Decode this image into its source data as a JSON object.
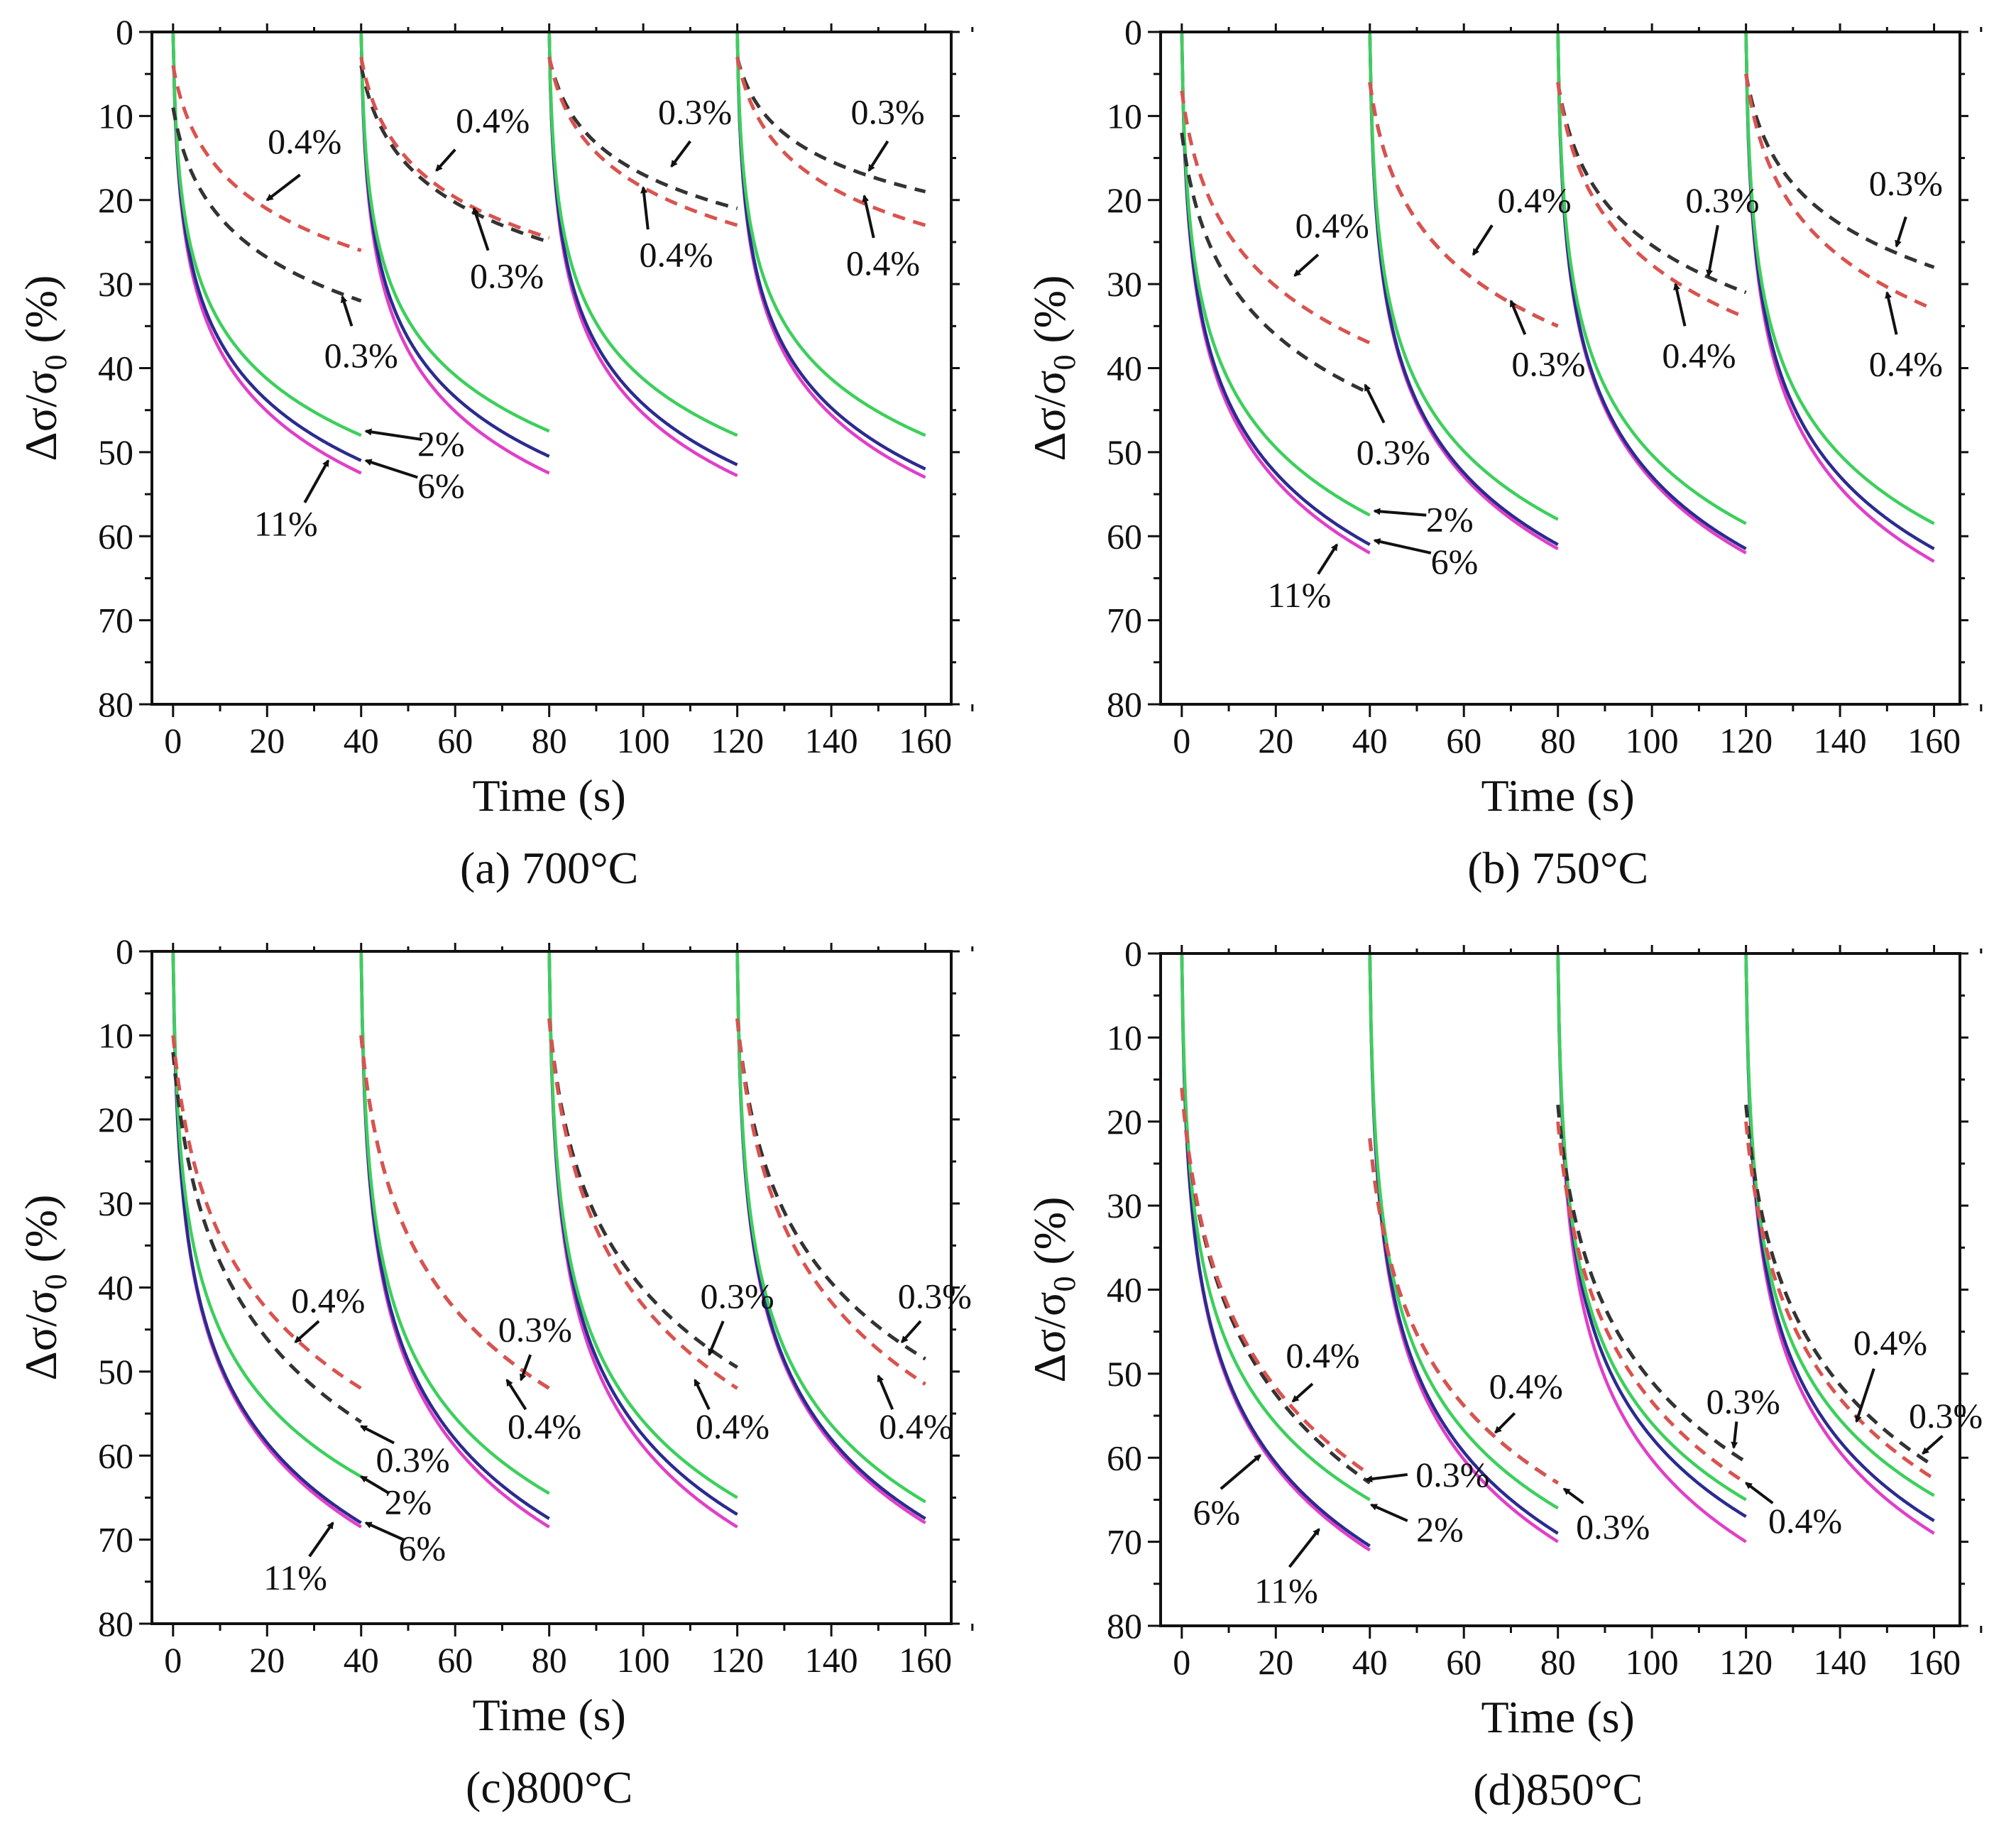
{
  "chart_data": [
    {
      "type": "line",
      "caption": "(a) 700°C",
      "xlabel": "Time (s)",
      "ylabel": {
        "main": "Δσ/σ",
        "sub": "0",
        "unit": " (%)"
      },
      "xlim": [
        -4.5,
        165.5
      ],
      "ylim": [
        0,
        80
      ],
      "y_inverted": true,
      "xticks": [
        0,
        20,
        40,
        60,
        80,
        100,
        120,
        140,
        160
      ],
      "yticks": [
        0,
        10,
        20,
        30,
        40,
        50,
        60,
        70,
        80
      ],
      "segment_starts": [
        0,
        40,
        80,
        120
      ],
      "segment_length": 40,
      "series": [
        {
          "name": "11%",
          "color": "#e040c8",
          "style": "solid",
          "start": [
            0,
            0,
            0,
            0
          ],
          "end": [
            52.5,
            52.5,
            52.8,
            53
          ]
        },
        {
          "name": "6%",
          "color": "#2b2b8f",
          "style": "solid",
          "start": [
            0,
            0,
            0,
            0
          ],
          "end": [
            51,
            50.5,
            51.5,
            52
          ]
        },
        {
          "name": "2%",
          "color": "#3dcf5c",
          "style": "solid",
          "start": [
            0,
            0,
            0,
            0
          ],
          "end": [
            48,
            47.5,
            48,
            48
          ]
        },
        {
          "name": "0.3%",
          "color": "#333333",
          "style": "dashed",
          "start": [
            9,
            4,
            3,
            3
          ],
          "end": [
            32,
            25,
            21,
            19
          ]
        },
        {
          "name": "0.4%",
          "color": "#d9534f",
          "style": "dashed",
          "start": [
            4,
            3,
            3,
            3
          ],
          "end": [
            26,
            24.5,
            23,
            23
          ]
        }
      ],
      "annotations": [
        {
          "text": "0.4%",
          "label": [
            28,
            13
          ],
          "tail": [
            27,
            17
          ],
          "tip": [
            20,
            20
          ]
        },
        {
          "text": "0.3%",
          "label": [
            40,
            38.5
          ],
          "tail": [
            38,
            35
          ],
          "tip": [
            36,
            31.5
          ]
        },
        {
          "text": "2%",
          "label": [
            57,
            49
          ],
          "tail": [
            53,
            48.5
          ],
          "tip": [
            41,
            47.5
          ]
        },
        {
          "text": "6%",
          "label": [
            57,
            54
          ],
          "tail": [
            52,
            53
          ],
          "tip": [
            41,
            51
          ]
        },
        {
          "text": "11%",
          "label": [
            24,
            58.5
          ],
          "tail": [
            28,
            56
          ],
          "tip": [
            33,
            51
          ]
        },
        {
          "text": "0.4%",
          "label": [
            68,
            10.5
          ],
          "tail": [
            60,
            14
          ],
          "tip": [
            56,
            16.5
          ]
        },
        {
          "text": "0.3%",
          "label": [
            71,
            29
          ],
          "tail": [
            67,
            26
          ],
          "tip": [
            64,
            21
          ]
        },
        {
          "text": "0.3%",
          "label": [
            111,
            9.5
          ],
          "tail": [
            110,
            13
          ],
          "tip": [
            106,
            16
          ]
        },
        {
          "text": "0.4%",
          "label": [
            107,
            26.5
          ],
          "tail": [
            101,
            23.5
          ],
          "tip": [
            100,
            18.5
          ]
        },
        {
          "text": "0.3%",
          "label": [
            152,
            9.5
          ],
          "tail": [
            152,
            13
          ],
          "tip": [
            148,
            16.5
          ]
        },
        {
          "text": "0.4%",
          "label": [
            151,
            27.5
          ],
          "tail": [
            149,
            24.5
          ],
          "tip": [
            147,
            19.5
          ]
        }
      ]
    },
    {
      "type": "line",
      "caption": "(b) 750°C",
      "xlabel": "Time (s)",
      "ylabel": {
        "main": "Δσ/σ",
        "sub": "0",
        "unit": " (%)"
      },
      "xlim": [
        -4.5,
        165.5
      ],
      "ylim": [
        0,
        80
      ],
      "y_inverted": true,
      "xticks": [
        0,
        20,
        40,
        60,
        80,
        100,
        120,
        140,
        160
      ],
      "yticks": [
        0,
        10,
        20,
        30,
        40,
        50,
        60,
        70,
        80
      ],
      "segment_starts": [
        0,
        40,
        80,
        120
      ],
      "segment_length": 40,
      "series": [
        {
          "name": "11%",
          "color": "#e040c8",
          "style": "solid",
          "start": [
            0,
            0,
            0,
            0
          ],
          "end": [
            62,
            61.5,
            62,
            63
          ]
        },
        {
          "name": "6%",
          "color": "#2b2b8f",
          "style": "solid",
          "start": [
            0,
            0,
            0,
            0
          ],
          "end": [
            61,
            61,
            61.5,
            61.5
          ]
        },
        {
          "name": "2%",
          "color": "#3dcf5c",
          "style": "solid",
          "start": [
            0,
            0,
            0,
            0
          ],
          "end": [
            57.5,
            58,
            58.5,
            58.5
          ]
        },
        {
          "name": "0.3%",
          "color": "#333333",
          "style": "dashed",
          "start": [
            12,
            6,
            6,
            5
          ],
          "end": [
            43,
            35,
            31,
            28
          ]
        },
        {
          "name": "0.4%",
          "color": "#d9534f",
          "style": "dashed",
          "start": [
            7,
            6,
            6,
            5
          ],
          "end": [
            37,
            35,
            34,
            33
          ]
        }
      ],
      "annotations": [
        {
          "text": "0.4%",
          "label": [
            32,
            23
          ],
          "tail": [
            29,
            26.5
          ],
          "tip": [
            24,
            29
          ]
        },
        {
          "text": "0.3%",
          "label": [
            45,
            50
          ],
          "tail": [
            43,
            46.5
          ],
          "tip": [
            39,
            42
          ]
        },
        {
          "text": "2%",
          "label": [
            57,
            58
          ],
          "tail": [
            52,
            57.5
          ],
          "tip": [
            41,
            57
          ]
        },
        {
          "text": "6%",
          "label": [
            58,
            63
          ],
          "tail": [
            53,
            62
          ],
          "tip": [
            41,
            60.5
          ]
        },
        {
          "text": "11%",
          "label": [
            25,
            67
          ],
          "tail": [
            29,
            64.5
          ],
          "tip": [
            33,
            61
          ]
        },
        {
          "text": "0.4%",
          "label": [
            75,
            20
          ],
          "tail": [
            66,
            23
          ],
          "tip": [
            62,
            26.5
          ]
        },
        {
          "text": "0.3%",
          "label": [
            78,
            39.5
          ],
          "tail": [
            73,
            36
          ],
          "tip": [
            70,
            32
          ]
        },
        {
          "text": "0.3%",
          "label": [
            115,
            20
          ],
          "tail": [
            114,
            23
          ],
          "tip": [
            112,
            29
          ]
        },
        {
          "text": "0.4%",
          "label": [
            110,
            38.5
          ],
          "tail": [
            107,
            35
          ],
          "tip": [
            105,
            30
          ]
        },
        {
          "text": "0.3%",
          "label": [
            154,
            18
          ],
          "tail": [
            154,
            22
          ],
          "tip": [
            152,
            25.5
          ]
        },
        {
          "text": "0.4%",
          "label": [
            154,
            39.5
          ],
          "tail": [
            152,
            36
          ],
          "tip": [
            150,
            31
          ]
        }
      ]
    },
    {
      "type": "line",
      "caption": "(c)800°C",
      "xlabel": "Time (s)",
      "ylabel": {
        "main": "Δσ/σ",
        "sub": "0",
        "unit": " (%)"
      },
      "xlim": [
        -4.5,
        165.5
      ],
      "ylim": [
        0,
        80
      ],
      "y_inverted": true,
      "xticks": [
        0,
        20,
        40,
        60,
        80,
        100,
        120,
        140,
        160
      ],
      "yticks": [
        0,
        10,
        20,
        30,
        40,
        50,
        60,
        70,
        80
      ],
      "segment_starts": [
        0,
        40,
        80,
        120
      ],
      "segment_length": 40,
      "series": [
        {
          "name": "11%",
          "color": "#e040c8",
          "style": "solid",
          "start": [
            0,
            0,
            0,
            0
          ],
          "end": [
            68.5,
            68.5,
            68.5,
            68
          ]
        },
        {
          "name": "6%",
          "color": "#2b2b8f",
          "style": "solid",
          "start": [
            0,
            0,
            0,
            0
          ],
          "end": [
            68,
            67.5,
            67,
            67.5
          ]
        },
        {
          "name": "2%",
          "color": "#3dcf5c",
          "style": "solid",
          "start": [
            0,
            0,
            0,
            0
          ],
          "end": [
            62.5,
            64.5,
            65,
            65.5
          ]
        },
        {
          "name": "0.3%",
          "color": "#333333",
          "style": "dashed",
          "start": [
            12,
            10,
            8,
            8
          ],
          "end": [
            56,
            52,
            49.5,
            48.5
          ]
        },
        {
          "name": "0.4%",
          "color": "#d9534f",
          "style": "dashed",
          "start": [
            10,
            10,
            8,
            8
          ],
          "end": [
            52,
            52,
            52,
            51.5
          ]
        }
      ],
      "annotations": [
        {
          "text": "0.4%",
          "label": [
            33,
            41.5
          ],
          "tail": [
            31,
            44
          ],
          "tip": [
            26,
            46.5
          ]
        },
        {
          "text": "0.3%",
          "label": [
            51,
            60.5
          ],
          "tail": [
            47,
            58.5
          ],
          "tip": [
            40,
            56.5
          ]
        },
        {
          "text": "2%",
          "label": [
            50,
            65.5
          ],
          "tail": [
            46,
            64.5
          ],
          "tip": [
            40,
            62.5
          ]
        },
        {
          "text": "6%",
          "label": [
            53,
            71
          ],
          "tail": [
            49,
            70
          ],
          "tip": [
            41,
            68
          ]
        },
        {
          "text": "11%",
          "label": [
            26,
            74.5
          ],
          "tail": [
            29,
            72
          ],
          "tip": [
            34,
            68
          ]
        },
        {
          "text": "0.3%",
          "label": [
            77,
            45
          ],
          "tail": [
            76,
            48
          ],
          "tip": [
            74,
            51
          ]
        },
        {
          "text": "0.4%",
          "label": [
            79,
            56.5
          ],
          "tail": [
            75,
            54.5
          ],
          "tip": [
            71,
            51
          ]
        },
        {
          "text": "0.3%",
          "label": [
            120,
            41
          ],
          "tail": [
            117,
            44
          ],
          "tip": [
            114,
            48
          ]
        },
        {
          "text": "0.4%",
          "label": [
            119,
            56.5
          ],
          "tail": [
            114,
            54.5
          ],
          "tip": [
            111,
            51
          ]
        },
        {
          "text": "0.3%",
          "label": [
            162,
            41
          ],
          "tail": [
            159,
            44
          ],
          "tip": [
            155,
            46.5
          ]
        },
        {
          "text": "0.4%",
          "label": [
            158,
            56.5
          ],
          "tail": [
            153,
            54.5
          ],
          "tip": [
            150,
            50.5
          ]
        }
      ]
    },
    {
      "type": "line",
      "caption": "(d)850°C",
      "xlabel": "Time (s)",
      "ylabel": {
        "main": "Δσ/σ",
        "sub": "0",
        "unit": " (%)"
      },
      "xlim": [
        -4.5,
        165.5
      ],
      "ylim": [
        0,
        80
      ],
      "y_inverted": true,
      "xticks": [
        0,
        20,
        40,
        60,
        80,
        100,
        120,
        140,
        160
      ],
      "yticks": [
        0,
        10,
        20,
        30,
        40,
        50,
        60,
        70,
        80
      ],
      "segment_starts": [
        0,
        40,
        80,
        120
      ],
      "segment_length": 40,
      "series": [
        {
          "name": "11%",
          "color": "#e040c8",
          "style": "solid",
          "start": [
            0,
            0,
            0,
            0
          ],
          "end": [
            71,
            70,
            70,
            69
          ]
        },
        {
          "name": "6%",
          "color": "#2b2b8f",
          "style": "solid",
          "start": [
            0,
            0,
            0,
            0
          ],
          "end": [
            70.5,
            69,
            67,
            67.5
          ]
        },
        {
          "name": "2%",
          "color": "#3dcf5c",
          "style": "solid",
          "start": [
            0,
            0,
            0,
            0
          ],
          "end": [
            65,
            66,
            65,
            64.5
          ]
        },
        {
          "name": "0.3%",
          "color": "#333333",
          "style": "dashed",
          "start": [
            16,
            22,
            18,
            18
          ],
          "end": [
            63,
            63,
            60.5,
            61
          ]
        },
        {
          "name": "0.4%",
          "color": "#d9534f",
          "style": "dashed",
          "start": [
            16,
            22,
            20,
            20
          ],
          "end": [
            62,
            63,
            63,
            62.5
          ]
        }
      ],
      "annotations": [
        {
          "text": "0.4%",
          "label": [
            30,
            47.8
          ],
          "tail": [
            27.8,
            51.2
          ],
          "tip": [
            23.6,
            53.3
          ]
        },
        {
          "text": "0.3%",
          "label": [
            57.6,
            62
          ],
          "tail": [
            48,
            62
          ],
          "tip": [
            39.3,
            62.6
          ]
        },
        {
          "text": "2%",
          "label": [
            54.9,
            68.5
          ],
          "tail": [
            48,
            67.5
          ],
          "tip": [
            40.3,
            65.6
          ]
        },
        {
          "text": "6%",
          "label": [
            7.4,
            66.5
          ],
          "tail": [
            8.3,
            63.7
          ],
          "tip": [
            16.7,
            59.7
          ]
        },
        {
          "text": "11%",
          "label": [
            22.2,
            75.8
          ],
          "tail": [
            22.9,
            73
          ],
          "tip": [
            29.2,
            68.5
          ]
        },
        {
          "text": "0.4%",
          "label": [
            73.2,
            51.5
          ],
          "tail": [
            70.8,
            54.7
          ],
          "tip": [
            66.7,
            57
          ]
        },
        {
          "text": "0.3%",
          "label": [
            91.7,
            68.2
          ],
          "tail": [
            85.4,
            65.4
          ],
          "tip": [
            81.3,
            63.7
          ]
        },
        {
          "text": "0.3%",
          "label": [
            119.4,
            53.3
          ],
          "tail": [
            118,
            55.7
          ],
          "tip": [
            117.4,
            58.8
          ]
        },
        {
          "text": "0.4%",
          "label": [
            132.6,
            67.5
          ],
          "tail": [
            125.7,
            65.4
          ],
          "tip": [
            120,
            63
          ]
        },
        {
          "text": "0.4%",
          "label": [
            150.7,
            46.3
          ],
          "tail": [
            147.2,
            49.4
          ],
          "tip": [
            143.5,
            55.7
          ]
        },
        {
          "text": "0.3%",
          "label": [
            162.5,
            55
          ],
          "tail": [
            161.8,
            57.4
          ],
          "tip": [
            157.6,
            59.5
          ]
        }
      ]
    }
  ]
}
